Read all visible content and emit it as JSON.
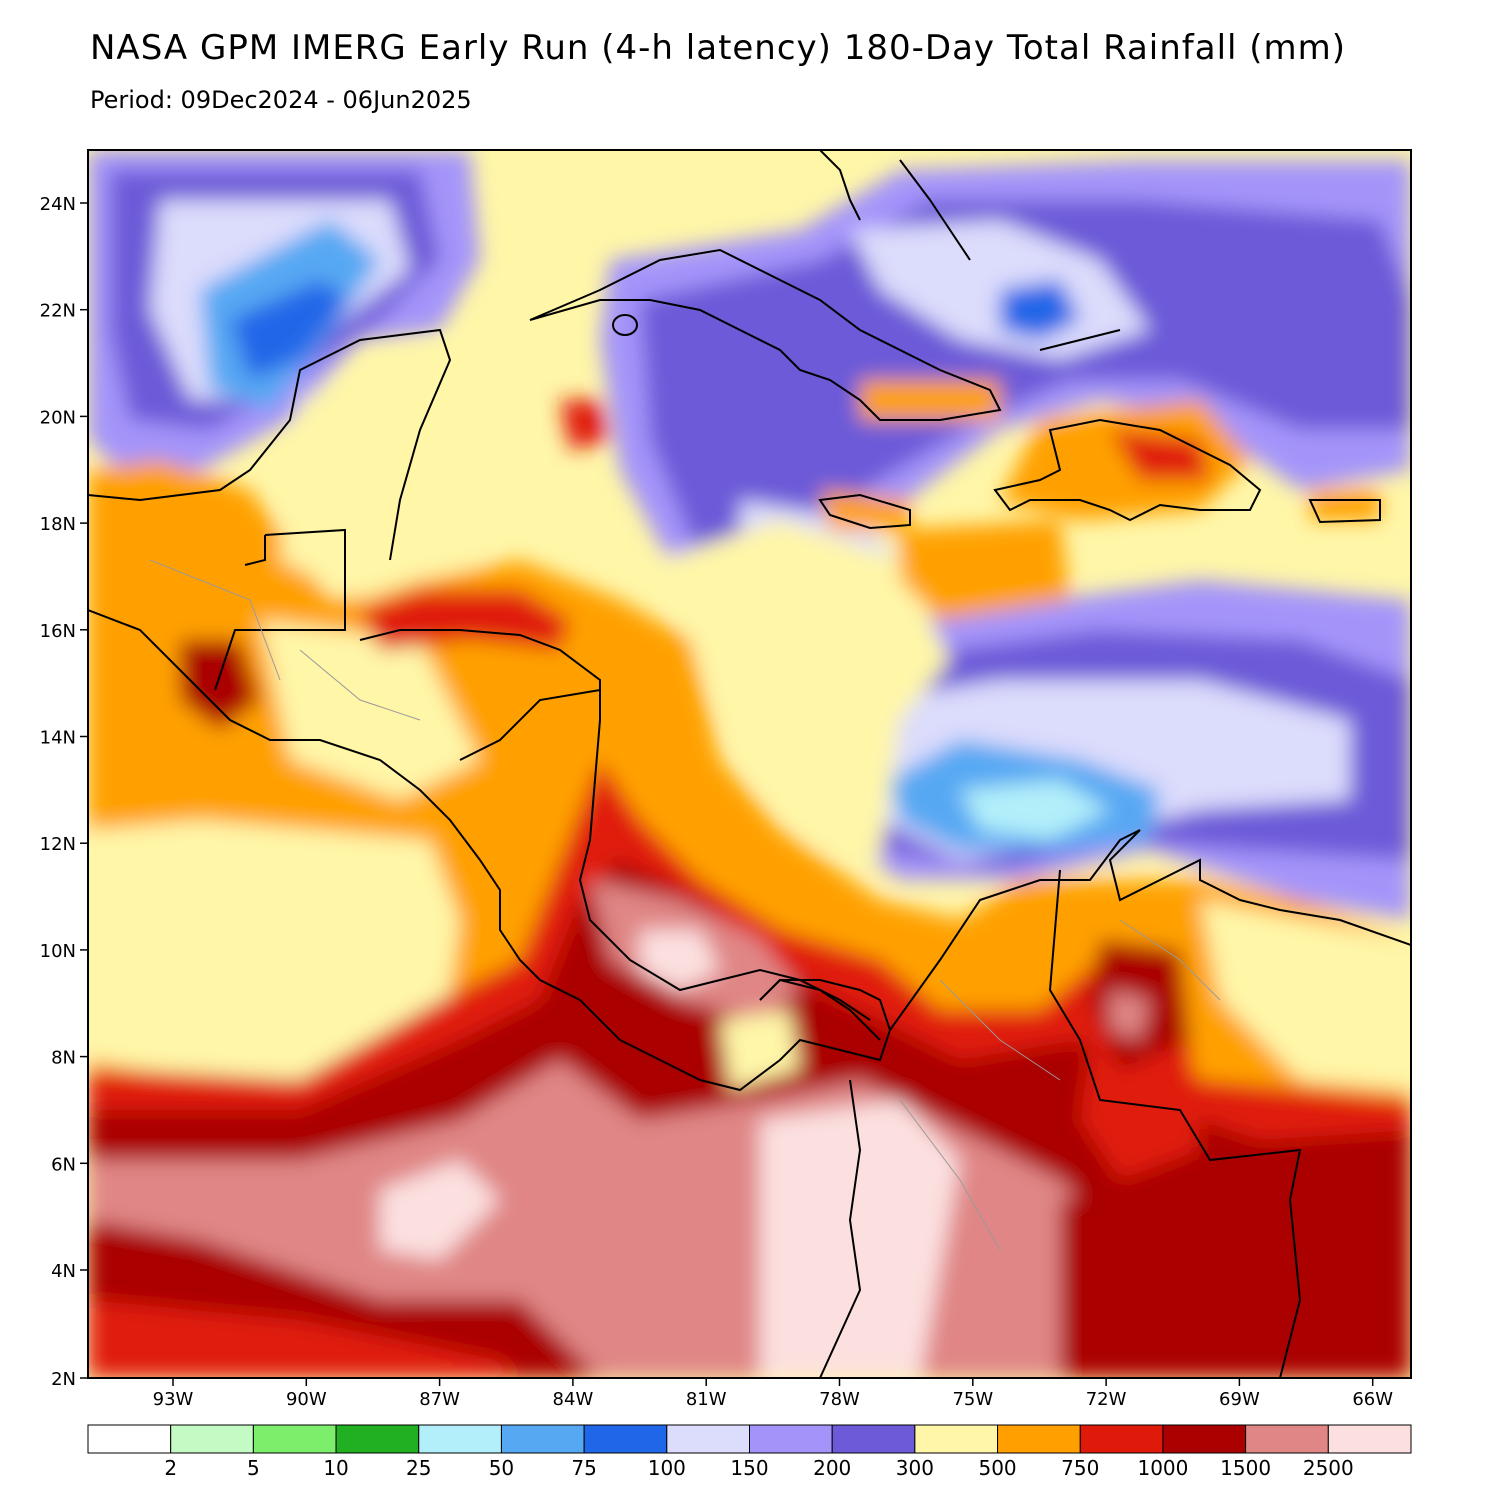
{
  "title": "NASA GPM IMERG Early Run (4-h latency) 180-Day Total Rainfall (mm)",
  "subtitle": "Period: 09Dec2024 - 06Jun2025",
  "map": {
    "lat_labels": [
      "24N",
      "22N",
      "20N",
      "18N",
      "16N",
      "14N",
      "12N",
      "10N",
      "8N",
      "6N",
      "4N",
      "2N"
    ],
    "lon_labels": [
      "93W",
      "90W",
      "87W",
      "84W",
      "81W",
      "78W",
      "75W",
      "72W",
      "69W",
      "66W"
    ]
  },
  "colorbar": {
    "colors": [
      "#ffffff",
      "#c4fac4",
      "#7ded6c",
      "#21b021",
      "#b2effa",
      "#56a8f3",
      "#2066e8",
      "#dcdcfc",
      "#a494fa",
      "#6c5ad8",
      "#fff6a8",
      "#ffa000",
      "#e01a0a",
      "#aa0000",
      "#e08686",
      "#fce0e0"
    ],
    "labels": [
      "2",
      "5",
      "10",
      "25",
      "50",
      "75",
      "100",
      "150",
      "200",
      "300",
      "500",
      "750",
      "1000",
      "1500",
      "2500"
    ]
  },
  "colors": {
    "land_outline": "#000000",
    "admin_borders": "#9a9a9a"
  }
}
